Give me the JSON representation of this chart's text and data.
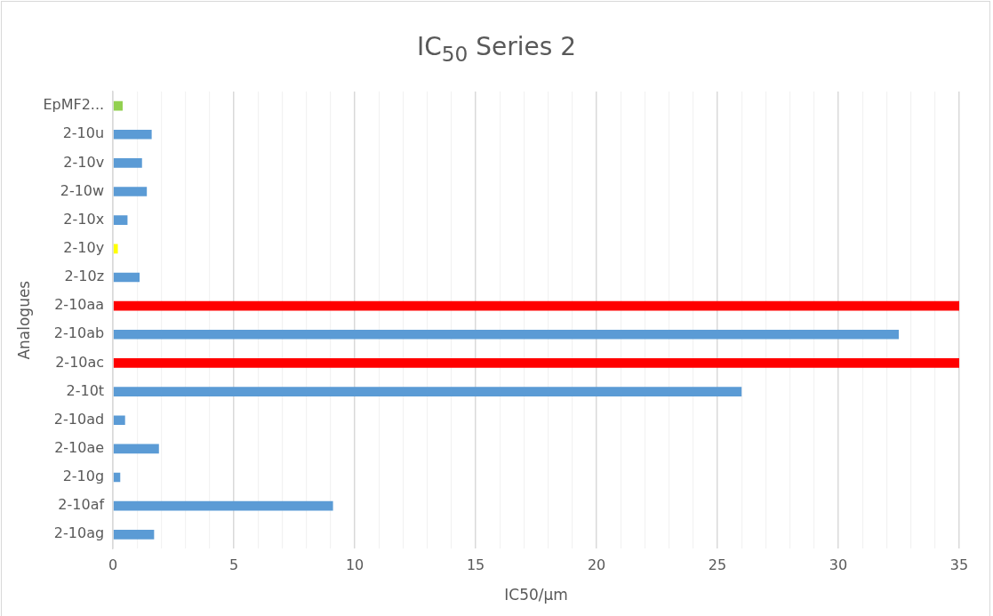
{
  "chart_data": {
    "type": "bar",
    "orientation": "horizontal",
    "title": "IC$_{50}$ Series 2",
    "xlabel": "IC50/µm",
    "ylabel": "Analogues",
    "categories": [
      "EpMF2...",
      "2-10u",
      "2-10v",
      "2-10w",
      "2-10x",
      "2-10y",
      "2-10z",
      "2-10aa",
      "2-10ab",
      "2-10ac",
      "2-10t",
      "2-10ad",
      "2-10ae",
      "2-10g",
      "2-10af",
      "2-10ag"
    ],
    "values": [
      0.4,
      1.6,
      1.2,
      1.4,
      0.6,
      0.2,
      1.1,
      35,
      32.5,
      35,
      26,
      0.5,
      1.9,
      0.3,
      9.1,
      1.7
    ],
    "colors": [
      "#92d050",
      "#5b9bd5",
      "#5b9bd5",
      "#5b9bd5",
      "#5b9bd5",
      "#ffff00",
      "#5b9bd5",
      "#ff0000",
      "#5b9bd5",
      "#ff0000",
      "#5b9bd5",
      "#5b9bd5",
      "#5b9bd5",
      "#5b9bd5",
      "#5b9bd5",
      "#5b9bd5"
    ],
    "xlim": [
      0,
      35
    ],
    "xticks": [
      0,
      {
        "value": 1,
        "label": null
      },
      {
        "value": 2,
        "label": null
      },
      {
        "value": 3,
        "label": null
      },
      {
        "value": 4,
        "label": null
      },
      5,
      {
        "value": 6,
        "label": null
      },
      {
        "value": 7,
        "label": null
      },
      {
        "value": 8,
        "label": null
      },
      {
        "value": 9,
        "label": null
      },
      10,
      {
        "value": 11,
        "label": null
      },
      {
        "value": 12,
        "label": null
      },
      {
        "value": 13,
        "label": null
      },
      {
        "value": 14,
        "label": null
      },
      15,
      {
        "value": 16,
        "label": null
      },
      {
        "value": 17,
        "label": null
      },
      {
        "value": 18,
        "label": null
      },
      {
        "value": 19,
        "label": null
      },
      20,
      {
        "value": 21,
        "label": null
      },
      {
        "value": 22,
        "label": null
      },
      {
        "value": 23,
        "label": null
      },
      {
        "value": 24,
        "label": null
      },
      25,
      {
        "value": 26,
        "label": null
      },
      {
        "value": 27,
        "label": null
      },
      {
        "value": 28,
        "label": null
      },
      {
        "value": 29,
        "label": null
      },
      30,
      {
        "value": 31,
        "label": null
      },
      {
        "value": 32,
        "label": null
      },
      {
        "value": 33,
        "label": null
      },
      {
        "value": 34,
        "label": null
      },
      35
    ],
    "grid": "x",
    "legend": false
  }
}
